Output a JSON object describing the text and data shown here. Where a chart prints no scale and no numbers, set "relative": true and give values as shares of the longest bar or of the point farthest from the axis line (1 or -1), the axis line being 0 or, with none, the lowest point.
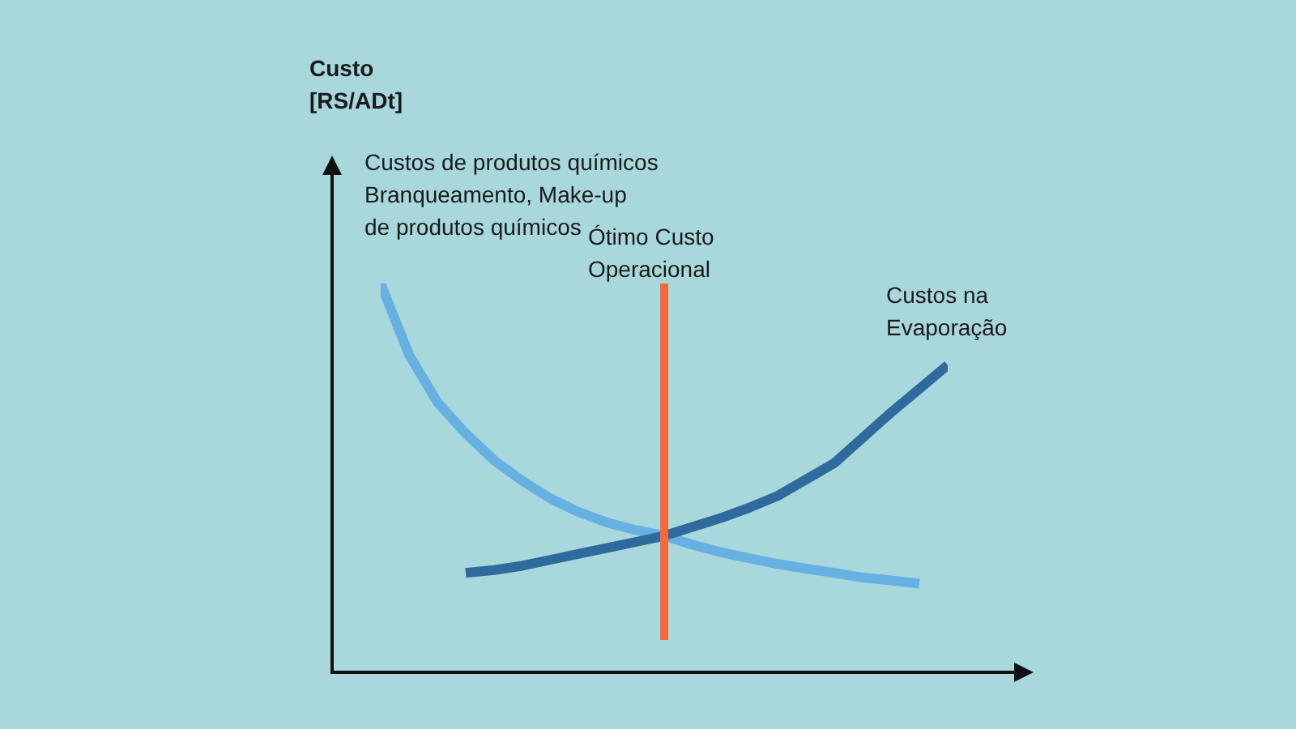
{
  "chart_data": {
    "type": "line",
    "annotations": [
      "Custo\n[RS/ADt]"
    ],
    "relative": true,
    "marker": "none",
    "line_style": "solid",
    "categories": [
      null,
      null,
      null,
      null,
      null,
      null,
      null,
      null,
      null,
      null,
      null,
      null,
      null,
      null,
      null,
      null,
      null,
      null,
      null,
      null,
      null
    ],
    "series": [
      {
        "name": "Custos de produtos químicos\nBranqueamento, Make-up\nde produtos químicos",
        "color": "#66b0e2",
        "values": [
          1,
          0.8,
          0.667,
          0.579,
          0.504,
          0.446,
          0.396,
          0.358,
          0.329,
          0.308,
          0.292,
          0.267,
          0.246,
          0.229,
          0.213,
          0.2,
          0.188,
          0.175,
          0.167,
          0.158,
          null
        ]
      },
      {
        "name": "Custos na\nEvaporação",
        "color": "#2e6b9c",
        "values": [
          null,
          null,
          null,
          0.188,
          0.196,
          0.208,
          0.225,
          0.242,
          0.258,
          0.275,
          0.292,
          0.317,
          0.342,
          0.371,
          0.404,
          0.45,
          0.496,
          0.567,
          0.638,
          0.704,
          0.771
        ]
      }
    ],
    "ref_lines": [
      {
        "axis": "x",
        "label": "Ótimo Custo\nOperacional",
        "color": "#f4683a"
      }
    ]
  }
}
